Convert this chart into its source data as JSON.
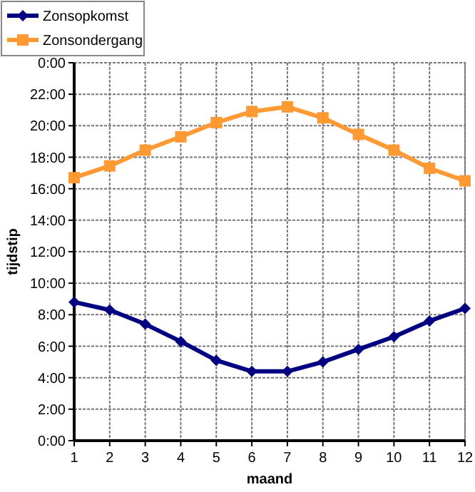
{
  "chart_data": {
    "type": "line",
    "xlabel": "maand",
    "ylabel": "tijdstip",
    "x": [
      1,
      2,
      3,
      4,
      5,
      6,
      7,
      8,
      9,
      10,
      11,
      12
    ],
    "series": [
      {
        "name": "Zonsopkomst",
        "color": "#000080",
        "marker": "diamond",
        "values": [
          8.8,
          8.3,
          7.4,
          6.3,
          5.1,
          4.4,
          4.4,
          5.0,
          5.8,
          6.6,
          7.6,
          8.4
        ]
      },
      {
        "name": "Zonsondergang",
        "color": "#ff9933",
        "marker": "square",
        "values": [
          16.7,
          17.45,
          18.45,
          19.3,
          20.2,
          20.9,
          21.2,
          20.5,
          19.45,
          18.45,
          17.3,
          16.5
        ]
      }
    ],
    "xlim": [
      1,
      12
    ],
    "xticks": [
      1,
      2,
      3,
      4,
      5,
      6,
      7,
      8,
      9,
      10,
      11,
      12
    ],
    "ylim": [
      0,
      24
    ],
    "yticks": [
      {
        "value": 0,
        "label": "0:00"
      },
      {
        "value": 2,
        "label": "2:00"
      },
      {
        "value": 4,
        "label": "4:00"
      },
      {
        "value": 6,
        "label": "6:00"
      },
      {
        "value": 8,
        "label": "8:00"
      },
      {
        "value": 10,
        "label": "10:00"
      },
      {
        "value": 12,
        "label": "12:00"
      },
      {
        "value": 14,
        "label": "14:00"
      },
      {
        "value": 16,
        "label": "16:00"
      },
      {
        "value": 18,
        "label": "18:00"
      },
      {
        "value": 20,
        "label": "20:00"
      },
      {
        "value": 22,
        "label": "22:00"
      },
      {
        "value": 24,
        "label": "0:00"
      }
    ],
    "grid": true,
    "legend": "top left",
    "line_style": "solid"
  }
}
